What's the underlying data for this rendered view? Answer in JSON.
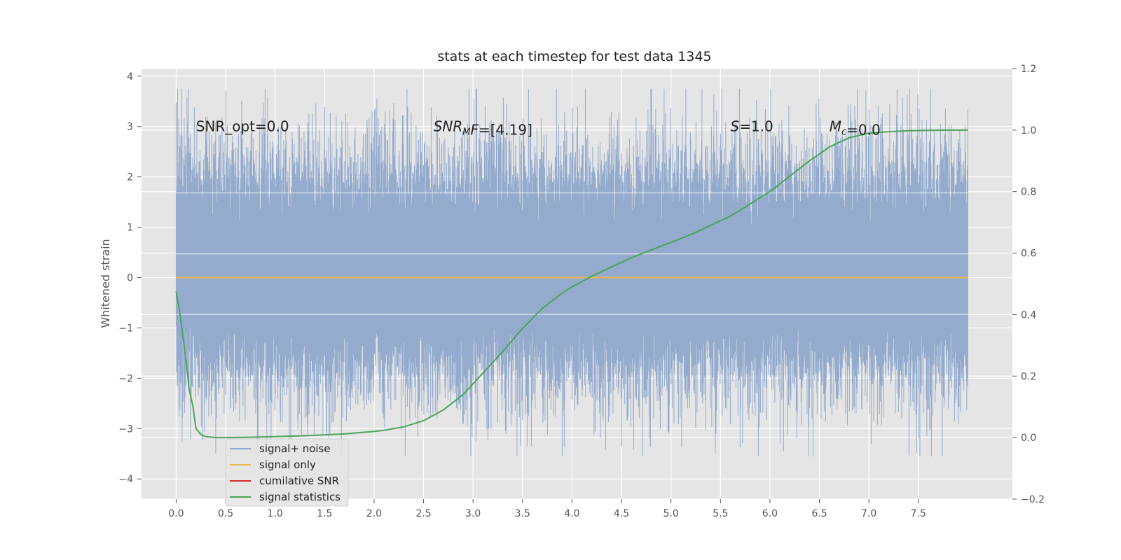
{
  "chart_data": {
    "type": "line",
    "title": "stats at each timestep for test data 1345",
    "ylabel": "Whitened strain",
    "xlabel": "",
    "xlim": [
      -0.35,
      8.45
    ],
    "ylim": [
      -4.4,
      4.15
    ],
    "y2lim": [
      -0.2,
      1.2
    ],
    "x_ticks": [
      0.0,
      0.5,
      1.0,
      1.5,
      2.0,
      2.5,
      3.0,
      3.5,
      4.0,
      4.5,
      5.0,
      5.5,
      6.0,
      6.5,
      7.0,
      7.5
    ],
    "x_tick_labels": [
      "0.0",
      "0.5",
      "1.0",
      "1.5",
      "2.0",
      "2.5",
      "3.0",
      "3.5",
      "4.0",
      "4.5",
      "5.0",
      "5.5",
      "6.0",
      "6.5",
      "7.0",
      "7.5"
    ],
    "y_ticks": [
      -4,
      -3,
      -2,
      -1,
      0,
      1,
      2,
      3,
      4
    ],
    "y_tick_labels": [
      "−4",
      "−3",
      "−2",
      "−1",
      "0",
      "1",
      "2",
      "3",
      "4"
    ],
    "y2_ticks": [
      -0.2,
      0.0,
      0.2,
      0.4,
      0.6,
      0.8,
      1.0,
      1.2
    ],
    "y2_tick_labels": [
      "−0.2",
      "0.0",
      "0.2",
      "0.4",
      "0.6",
      "0.8",
      "1.0",
      "1.2"
    ],
    "grid": true,
    "legend_position": "lower-left",
    "annotations": [
      {
        "key": "snr-opt",
        "parts": [
          {
            "t": "SNR_opt=0.0",
            "i": false
          }
        ],
        "x": 0.2,
        "y": 3.0
      },
      {
        "key": "snr-mf",
        "parts": [
          {
            "t": "SNR",
            "i": true
          },
          {
            "t": "M",
            "i": true,
            "sub": true
          },
          {
            "t": "F",
            "i": true
          },
          {
            "t": "=[4.19]",
            "i": false
          }
        ],
        "x": 2.6,
        "y": 3.0
      },
      {
        "key": "stat-s",
        "parts": [
          {
            "t": "S",
            "i": true
          },
          {
            "t": "=1.0",
            "i": false
          }
        ],
        "x": 5.6,
        "y": 3.0
      },
      {
        "key": "mc",
        "parts": [
          {
            "t": "M",
            "i": true
          },
          {
            "t": "c",
            "i": true,
            "sub": true
          },
          {
            "t": "=0.0",
            "i": false
          }
        ],
        "x": 6.6,
        "y": 3.0
      }
    ],
    "series": [
      {
        "name": "signal+ noise",
        "color": "#8fa8cc",
        "kind": "noise",
        "x_range": [
          0.0,
          8.0
        ],
        "band_sigma": 1.0,
        "peak_max": 3.75,
        "peak_min": -3.55,
        "description_values": "random whitened noise between about -3.5 and 3.75"
      },
      {
        "name": "signal only",
        "color": "#e8b84a",
        "axis": "left",
        "x": [
          0.0,
          8.0
        ],
        "y": [
          0.0,
          0.0
        ]
      },
      {
        "name": "cumilative SNR",
        "color": "#d62728",
        "axis": "left",
        "x": [],
        "y": []
      },
      {
        "name": "signal statistics",
        "color": "#4aa35a",
        "axis": "right",
        "x": [
          0.0,
          0.03,
          0.06,
          0.1,
          0.13,
          0.17,
          0.2,
          0.25,
          0.3,
          0.4,
          0.5,
          0.7,
          1.0,
          1.3,
          1.7,
          2.0,
          2.1,
          2.3,
          2.5,
          2.7,
          2.9,
          3.1,
          3.3,
          3.5,
          3.7,
          3.9,
          4.0,
          4.2,
          4.4,
          4.6,
          4.8,
          5.0,
          5.2,
          5.4,
          5.6,
          5.8,
          6.0,
          6.2,
          6.4,
          6.6,
          6.8,
          7.0,
          7.2,
          7.4,
          7.6,
          7.8,
          8.0
        ],
        "y": [
          0.475,
          0.42,
          0.35,
          0.25,
          0.16,
          0.1,
          0.03,
          0.01,
          0.003,
          0.0,
          0.0,
          0.001,
          0.003,
          0.006,
          0.012,
          0.02,
          0.024,
          0.035,
          0.055,
          0.09,
          0.14,
          0.21,
          0.28,
          0.355,
          0.42,
          0.47,
          0.49,
          0.525,
          0.555,
          0.585,
          0.61,
          0.635,
          0.66,
          0.69,
          0.72,
          0.76,
          0.8,
          0.85,
          0.9,
          0.945,
          0.975,
          0.99,
          0.995,
          0.998,
          0.999,
          1.0,
          1.0
        ]
      }
    ]
  }
}
